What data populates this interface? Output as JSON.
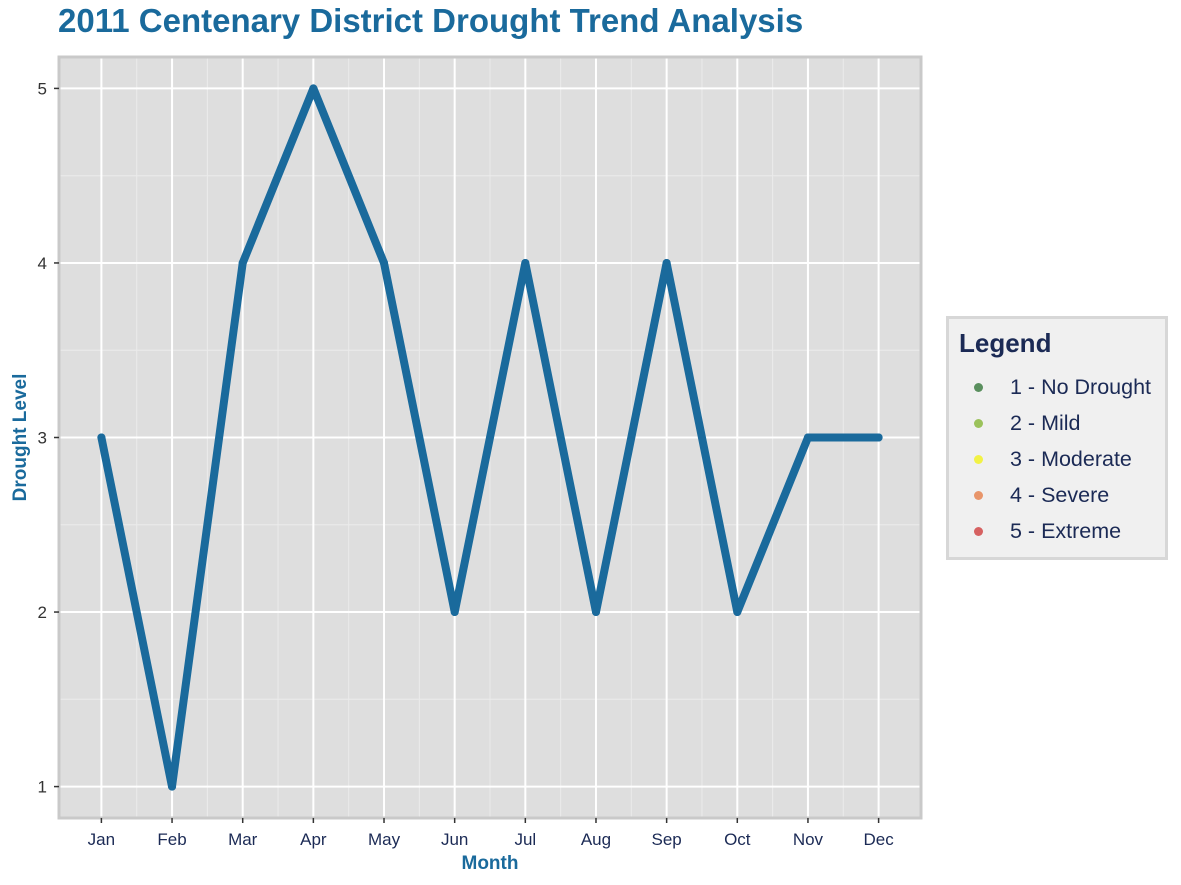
{
  "chart_data": {
    "type": "line",
    "title": "2011 Centenary District Drought Trend Analysis",
    "xlabel": "Month",
    "ylabel": "Drought Level",
    "categories": [
      "Jan",
      "Feb",
      "Mar",
      "Apr",
      "May",
      "Jun",
      "Jul",
      "Aug",
      "Sep",
      "Oct",
      "Nov",
      "Dec"
    ],
    "values": [
      3,
      1,
      4,
      5,
      4,
      2,
      4,
      2,
      4,
      2,
      3,
      3
    ],
    "ylim": [
      0.82,
      5.18
    ],
    "yticks": [
      "1",
      "2",
      "3",
      "4",
      "5"
    ],
    "grid": true,
    "line_color": "#1a6a9c",
    "panel_color": "#dedede",
    "legend": {
      "title": "Legend",
      "placement": "right",
      "items": [
        {
          "label": "1 - No Drought",
          "color": "#5a8f5e"
        },
        {
          "label": "2 - Mild",
          "color": "#9bc25b"
        },
        {
          "label": "3 - Moderate",
          "color": "#f2f246"
        },
        {
          "label": "4 - Severe",
          "color": "#e8956a"
        },
        {
          "label": "5 - Extreme",
          "color": "#d66161"
        }
      ]
    }
  }
}
